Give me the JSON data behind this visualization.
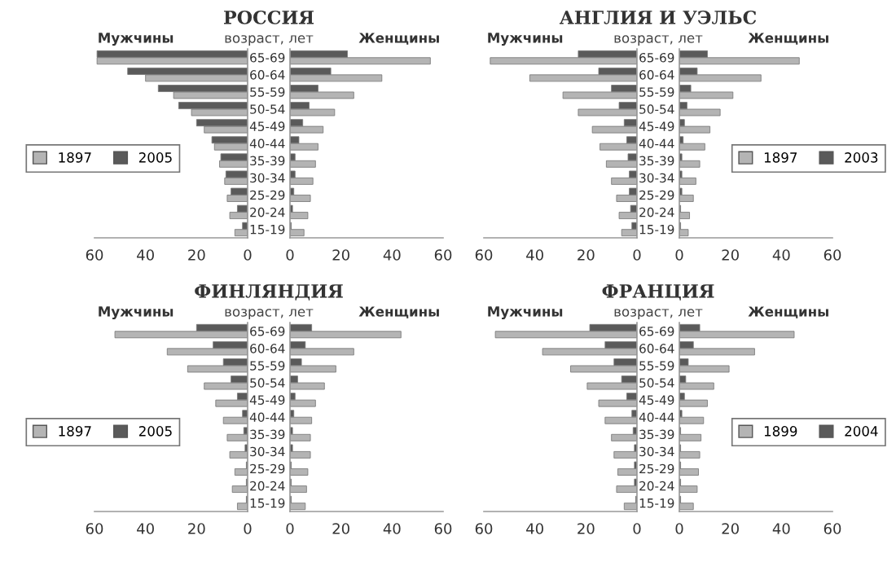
{
  "chart_data": [
    {
      "type": "bar",
      "orientation": "horizontal",
      "subtitle": "Мужчины",
      "legend": "left",
      "xlim": [
        60,
        0
      ],
      "xticks": [
        60,
        40,
        20,
        0
      ],
      "categories": [
        null,
        null,
        null,
        null,
        null,
        null,
        null,
        null,
        null,
        null,
        null
      ],
      "series": [
        {
          "name": "1897",
          "color": "#b4b4b4",
          "values": [
            59,
            40,
            29,
            22,
            17,
            13,
            11,
            9,
            8,
            7,
            5
          ]
        },
        {
          "name": "2005",
          "color": "#5a5a5a",
          "values": [
            59,
            47,
            35,
            27,
            20,
            14,
            10.5,
            8.5,
            6.5,
            4,
            2
          ]
        }
      ]
    },
    {
      "type": "bar",
      "orientation": "horizontal",
      "title": "РОССИЯ",
      "subtitle": "Женщины",
      "ylabel": "возраст, лет",
      "xlim": [
        0,
        60
      ],
      "xticks": [
        0,
        20,
        40,
        60
      ],
      "categories": [
        "65-69",
        "60-64",
        "55-59",
        "50-54",
        "45-49",
        "40-44",
        "35-39",
        "30-34",
        "25-29",
        "20-24",
        "15-19"
      ],
      "series": [
        {
          "color": "#b4b4b4",
          "values": [
            55,
            36,
            25,
            17.5,
            13,
            11,
            10,
            9,
            8,
            7,
            5.5
          ]
        },
        {
          "color": "#5a5a5a",
          "values": [
            22.5,
            16,
            11,
            7.5,
            5,
            3.5,
            2,
            2,
            1.5,
            1,
            0.5
          ]
        }
      ]
    },
    {
      "type": "bar",
      "orientation": "horizontal",
      "subtitle": "Мужчины",
      "xlim": [
        60,
        0
      ],
      "xticks": [
        60,
        40,
        20,
        0
      ],
      "categories": [
        null,
        null,
        null,
        null,
        null,
        null,
        null,
        null,
        null,
        null,
        null
      ],
      "series": [
        {
          "color": "#b4b4b4",
          "values": [
            57.5,
            42,
            29,
            23,
            17.5,
            14.5,
            12,
            10,
            8,
            7,
            6
          ]
        },
        {
          "color": "#5a5a5a",
          "values": [
            23,
            15,
            10,
            7,
            5,
            4,
            3.5,
            3,
            3,
            2.5,
            2
          ]
        }
      ]
    },
    {
      "type": "bar",
      "orientation": "horizontal",
      "title": "АНГЛИЯ И УЭЛЬС",
      "subtitle": "Женщины",
      "ylabel": "возраст, лет",
      "legend": "right",
      "xlim": [
        0,
        60
      ],
      "xticks": [
        0,
        20,
        40,
        60
      ],
      "categories": [
        "65-69",
        "60-64",
        "55-59",
        "50-54",
        "45-49",
        "40-44",
        "35-39",
        "30-34",
        "25-29",
        "20-24",
        "15-19"
      ],
      "series": [
        {
          "name": "1897",
          "color": "#b4b4b4",
          "values": [
            47,
            32,
            21,
            16,
            12,
            10,
            8,
            6.5,
            5.5,
            4,
            3.5
          ]
        },
        {
          "name": "2003",
          "color": "#5a5a5a",
          "values": [
            11,
            7,
            4.5,
            3,
            2,
            1.5,
            1,
            1,
            1,
            0.5,
            0.5
          ]
        }
      ]
    },
    {
      "type": "bar",
      "orientation": "horizontal",
      "subtitle": "Мужчины",
      "legend": "left",
      "xlim": [
        60,
        0
      ],
      "xticks": [
        60,
        40,
        20,
        0
      ],
      "categories": [
        null,
        null,
        null,
        null,
        null,
        null,
        null,
        null,
        null,
        null,
        null
      ],
      "series": [
        {
          "name": "1897",
          "color": "#b4b4b4",
          "values": [
            52,
            31.5,
            23.5,
            17,
            12.5,
            9.5,
            8,
            7,
            5,
            6,
            4
          ]
        },
        {
          "name": "2005",
          "color": "#5a5a5a",
          "values": [
            20,
            13.5,
            9.5,
            6.5,
            4,
            2,
            1.5,
            1,
            0.5,
            0.5,
            0.5
          ]
        }
      ]
    },
    {
      "type": "bar",
      "orientation": "horizontal",
      "title": "ФИНЛЯНДИЯ",
      "subtitle": "Женщины",
      "ylabel": "возраст, лет",
      "xlim": [
        0,
        60
      ],
      "xticks": [
        0,
        20,
        40,
        60
      ],
      "categories": [
        "65-69",
        "60-64",
        "55-59",
        "50-54",
        "45-49",
        "40-44",
        "35-39",
        "30-34",
        "25-29",
        "20-24",
        "15-19"
      ],
      "series": [
        {
          "color": "#b4b4b4",
          "values": [
            43.5,
            25,
            18,
            13.5,
            10,
            8.5,
            8,
            8,
            7,
            6.5,
            6
          ]
        },
        {
          "color": "#5a5a5a",
          "values": [
            8.5,
            6,
            4.5,
            3,
            2,
            1.5,
            1,
            1,
            0.5,
            0.5,
            0.5
          ]
        }
      ]
    },
    {
      "type": "bar",
      "orientation": "horizontal",
      "subtitle": "Мужчины",
      "xlim": [
        60,
        0
      ],
      "xticks": [
        60,
        40,
        20,
        0
      ],
      "categories": [
        null,
        null,
        null,
        null,
        null,
        null,
        null,
        null,
        null,
        null,
        null
      ],
      "series": [
        {
          "color": "#b4b4b4",
          "values": [
            55.5,
            37,
            26,
            19.5,
            15,
            12.5,
            10,
            9,
            7.5,
            8,
            5
          ]
        },
        {
          "color": "#5a5a5a",
          "values": [
            18.5,
            12.5,
            9,
            6,
            4,
            2,
            1.5,
            1,
            1,
            1,
            0.5
          ]
        }
      ]
    },
    {
      "type": "bar",
      "orientation": "horizontal",
      "title": "ФРАНЦИЯ",
      "subtitle": "Женщины",
      "ylabel": "возраст, лет",
      "legend": "right",
      "xlim": [
        0,
        60
      ],
      "xticks": [
        0,
        20,
        40,
        60
      ],
      "categories": [
        "65-69",
        "60-64",
        "55-59",
        "50-54",
        "45-49",
        "40-44",
        "35-39",
        "30-34",
        "25-29",
        "20-24",
        "15-19"
      ],
      "series": [
        {
          "name": "1899",
          "color": "#b4b4b4",
          "values": [
            45,
            29.5,
            19.5,
            13.5,
            11,
            9.5,
            8.5,
            8,
            7.5,
            7,
            5.5
          ]
        },
        {
          "name": "2004",
          "color": "#5a5a5a",
          "values": [
            8,
            5.5,
            3.5,
            2.5,
            2,
            1,
            0.5,
            0.5,
            0.5,
            0.5,
            0.5
          ]
        }
      ]
    }
  ]
}
